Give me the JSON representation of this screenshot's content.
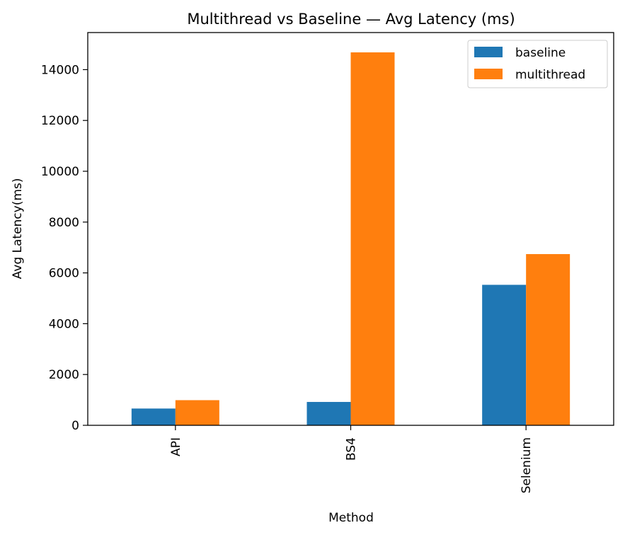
{
  "chart_data": {
    "type": "bar",
    "title": "Multithread vs Baseline — Avg Latency (ms)",
    "xlabel": "Method",
    "ylabel": "Avg Latency(ms)",
    "categories": [
      "API",
      "BS4",
      "Selenium"
    ],
    "series": [
      {
        "name": "baseline",
        "color": "#1f77b4",
        "values": [
          660,
          920,
          5530
        ]
      },
      {
        "name": "multithread",
        "color": "#ff7f0e",
        "values": [
          990,
          14680,
          6740
        ]
      }
    ],
    "ylim": [
      0,
      15460
    ],
    "yticks": [
      0,
      2000,
      4000,
      6000,
      8000,
      10000,
      12000,
      14000
    ],
    "ytick_labels": [
      "0",
      "2000",
      "4000",
      "6000",
      "8000",
      "10000",
      "12000",
      "14000"
    ],
    "grid": false,
    "legend_position": "top-right"
  }
}
